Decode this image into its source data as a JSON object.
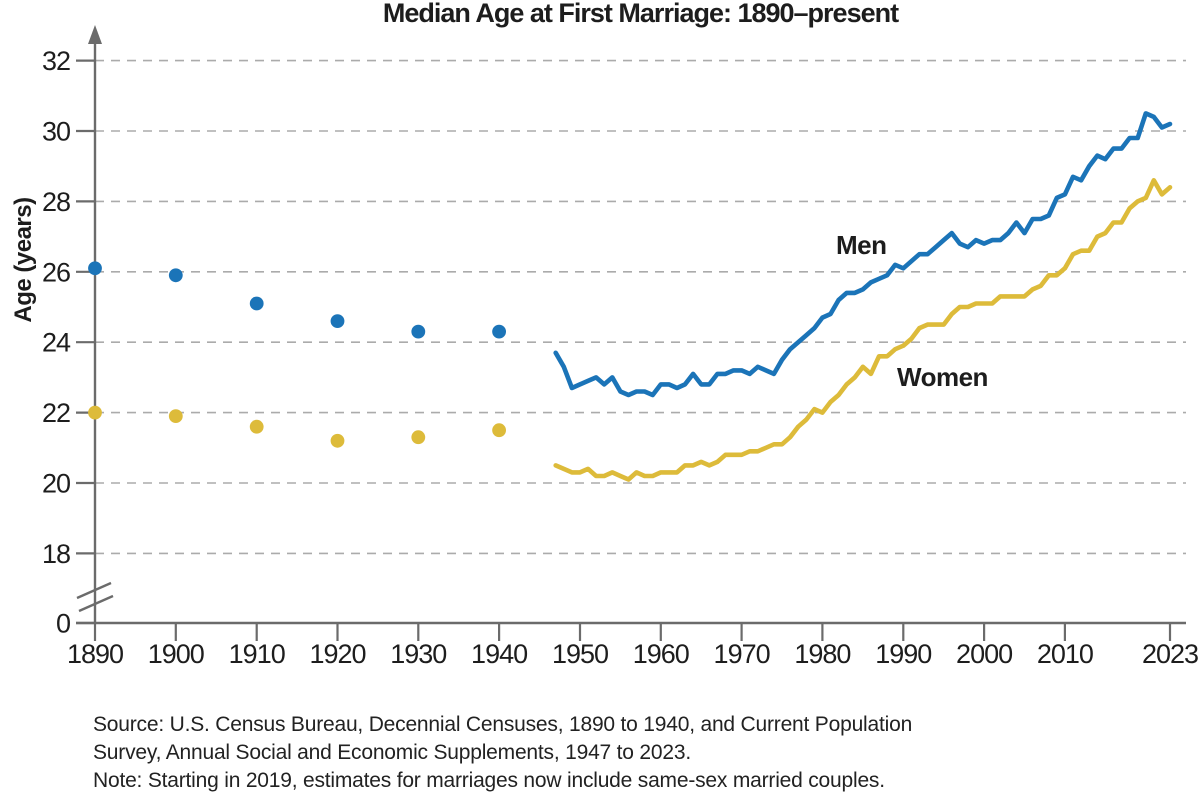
{
  "chart_data": {
    "type": "line",
    "title": "Median Age at First Marriage: 1890–present",
    "xlabel": "",
    "ylabel": "Age (years)",
    "xlim": [
      1890,
      2023
    ],
    "ylim": [
      0,
      33
    ],
    "y_axis_break_below": 18,
    "grid": "dashed-horizontal",
    "legend_position": "inline-labels-on-lines",
    "x_ticks": [
      1890,
      1900,
      1910,
      1920,
      1930,
      1940,
      1950,
      1960,
      1970,
      1980,
      1990,
      2000,
      2010,
      2023
    ],
    "x_tick_labels": [
      "1890",
      "1900",
      "1910",
      "1920",
      "1930",
      "1940",
      "1950",
      "1960",
      "1970",
      "1980",
      "1990",
      "2000",
      "2010",
      "2023"
    ],
    "y_ticks": [
      0,
      18,
      20,
      22,
      24,
      26,
      28,
      30,
      32
    ],
    "y_tick_labels": [
      "0",
      "18",
      "20",
      "22",
      "24",
      "26",
      "28",
      "30",
      "32"
    ],
    "colors": {
      "men": "#1b74b8",
      "women": "#ddbb3a",
      "axis": "#6b6b6b",
      "grid": "#ababab",
      "text": "#1d1d1d"
    },
    "series": [
      {
        "name": "Men",
        "style": "scatter",
        "color": "#1b74b8",
        "x": [
          1890,
          1900,
          1910,
          1920,
          1930,
          1940
        ],
        "values": [
          26.1,
          25.9,
          25.1,
          24.6,
          24.3,
          24.3
        ]
      },
      {
        "name": "Women",
        "style": "scatter",
        "color": "#ddbb3a",
        "x": [
          1890,
          1900,
          1910,
          1920,
          1930,
          1940
        ],
        "values": [
          22.0,
          21.9,
          21.6,
          21.2,
          21.3,
          21.5
        ]
      },
      {
        "name": "Men",
        "style": "line",
        "color": "#1b74b8",
        "x": [
          1947,
          1948,
          1949,
          1950,
          1951,
          1952,
          1953,
          1954,
          1955,
          1956,
          1957,
          1958,
          1959,
          1960,
          1961,
          1962,
          1963,
          1964,
          1965,
          1966,
          1967,
          1968,
          1969,
          1970,
          1971,
          1972,
          1973,
          1974,
          1975,
          1976,
          1977,
          1978,
          1979,
          1980,
          1981,
          1982,
          1983,
          1984,
          1985,
          1986,
          1987,
          1988,
          1989,
          1990,
          1991,
          1992,
          1993,
          1994,
          1995,
          1996,
          1997,
          1998,
          1999,
          2000,
          2001,
          2002,
          2003,
          2004,
          2005,
          2006,
          2007,
          2008,
          2009,
          2010,
          2011,
          2012,
          2013,
          2014,
          2015,
          2016,
          2017,
          2018,
          2019,
          2020,
          2021,
          2022,
          2023
        ],
        "values": [
          23.7,
          23.3,
          22.7,
          22.8,
          22.9,
          23.0,
          22.8,
          23.0,
          22.6,
          22.5,
          22.6,
          22.6,
          22.5,
          22.8,
          22.8,
          22.7,
          22.8,
          23.1,
          22.8,
          22.8,
          23.1,
          23.1,
          23.2,
          23.2,
          23.1,
          23.3,
          23.2,
          23.1,
          23.5,
          23.8,
          24.0,
          24.2,
          24.4,
          24.7,
          24.8,
          25.2,
          25.4,
          25.4,
          25.5,
          25.7,
          25.8,
          25.9,
          26.2,
          26.1,
          26.3,
          26.5,
          26.5,
          26.7,
          26.9,
          27.1,
          26.8,
          26.7,
          26.9,
          26.8,
          26.9,
          26.9,
          27.1,
          27.4,
          27.1,
          27.5,
          27.5,
          27.6,
          28.1,
          28.2,
          28.7,
          28.6,
          29.0,
          29.3,
          29.2,
          29.5,
          29.5,
          29.8,
          29.8,
          30.5,
          30.4,
          30.1,
          30.2
        ]
      },
      {
        "name": "Women",
        "style": "line",
        "color": "#ddbb3a",
        "x": [
          1947,
          1948,
          1949,
          1950,
          1951,
          1952,
          1953,
          1954,
          1955,
          1956,
          1957,
          1958,
          1959,
          1960,
          1961,
          1962,
          1963,
          1964,
          1965,
          1966,
          1967,
          1968,
          1969,
          1970,
          1971,
          1972,
          1973,
          1974,
          1975,
          1976,
          1977,
          1978,
          1979,
          1980,
          1981,
          1982,
          1983,
          1984,
          1985,
          1986,
          1987,
          1988,
          1989,
          1990,
          1991,
          1992,
          1993,
          1994,
          1995,
          1996,
          1997,
          1998,
          1999,
          2000,
          2001,
          2002,
          2003,
          2004,
          2005,
          2006,
          2007,
          2008,
          2009,
          2010,
          2011,
          2012,
          2013,
          2014,
          2015,
          2016,
          2017,
          2018,
          2019,
          2020,
          2021,
          2022,
          2023
        ],
        "values": [
          20.5,
          20.4,
          20.3,
          20.3,
          20.4,
          20.2,
          20.2,
          20.3,
          20.2,
          20.1,
          20.3,
          20.2,
          20.2,
          20.3,
          20.3,
          20.3,
          20.5,
          20.5,
          20.6,
          20.5,
          20.6,
          20.8,
          20.8,
          20.8,
          20.9,
          20.9,
          21.0,
          21.1,
          21.1,
          21.3,
          21.6,
          21.8,
          22.1,
          22.0,
          22.3,
          22.5,
          22.8,
          23.0,
          23.3,
          23.1,
          23.6,
          23.6,
          23.8,
          23.9,
          24.1,
          24.4,
          24.5,
          24.5,
          24.5,
          24.8,
          25.0,
          25.0,
          25.1,
          25.1,
          25.1,
          25.3,
          25.3,
          25.3,
          25.3,
          25.5,
          25.6,
          25.9,
          25.9,
          26.1,
          26.5,
          26.6,
          26.6,
          27.0,
          27.1,
          27.4,
          27.4,
          27.8,
          28.0,
          28.1,
          28.6,
          28.2,
          28.4
        ]
      }
    ]
  },
  "footer": {
    "source_line1": "Source: U.S. Census Bureau, Decennial Censuses, 1890 to 1940, and Current Population",
    "source_line2": "Survey, Annual Social and Economic Supplements, 1947 to 2023.",
    "note": "Note: Starting in 2019, estimates for marriages now include same-sex married couples."
  }
}
